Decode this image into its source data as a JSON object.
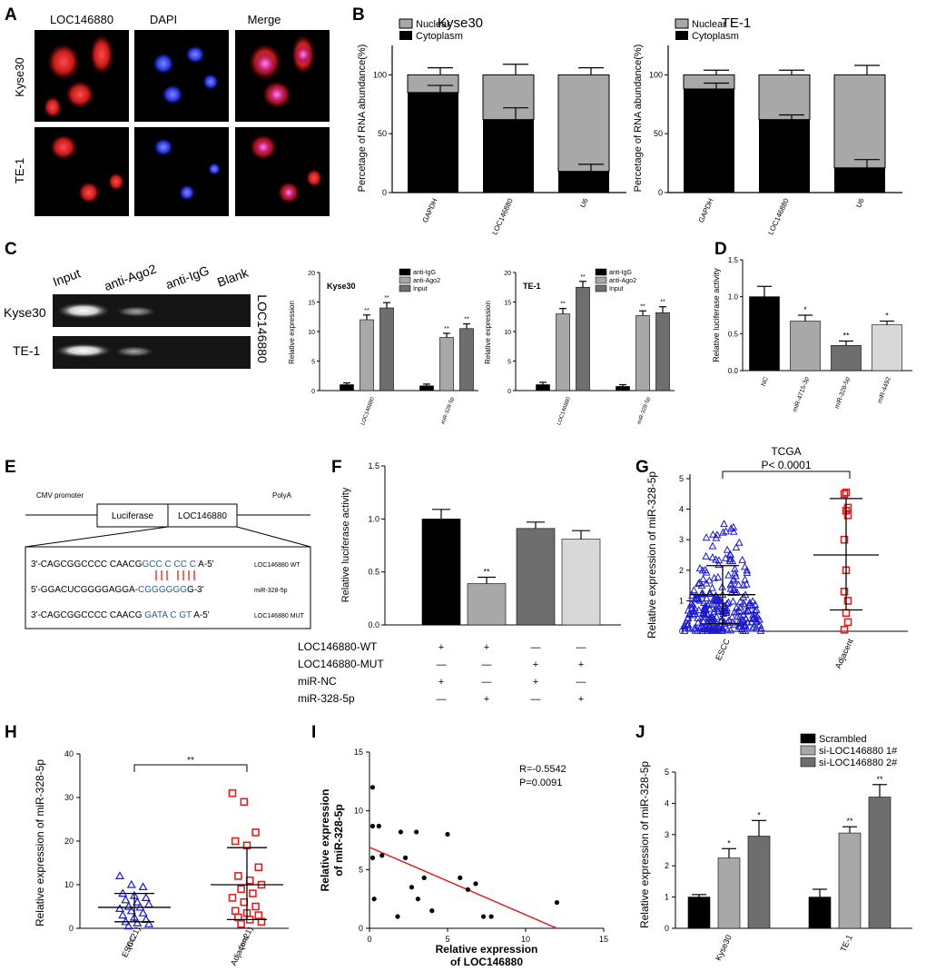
{
  "panels": {
    "A": {
      "label": "A",
      "columns": [
        "LOC146880",
        "DAPI",
        "Merge"
      ],
      "rows": [
        "Kyse30",
        "TE-1"
      ]
    },
    "B": {
      "label": "B",
      "ylabel": "Percetage of RNA abundance(%)",
      "legend": [
        "Nuclear",
        "Cytoplasm"
      ],
      "charts": [
        {
          "title": "Kyse30",
          "categories": [
            "GAPDH",
            "LOC146880",
            "U6"
          ],
          "cytoplasm": [
            85,
            62,
            18
          ],
          "cyto_err": [
            6,
            10,
            6
          ],
          "total_err": [
            6,
            9,
            6
          ]
        },
        {
          "title": "TE-1",
          "categories": [
            "GAPDH",
            "LOC146880",
            "U6"
          ],
          "cytoplasm": [
            88,
            62,
            21
          ],
          "cyto_err": [
            5,
            4,
            7
          ],
          "total_err": [
            4,
            4,
            8
          ]
        }
      ],
      "yticks": [
        "0",
        "50",
        "100"
      ]
    },
    "C": {
      "label": "C",
      "gel_lanes": [
        "Input",
        "anti-Ago2",
        "anti-IgG",
        "Blank"
      ],
      "gel_rows": [
        "Kyse30",
        "TE-1"
      ],
      "gel_side": "LOC146880",
      "ylabel": "Relative expression",
      "legend": [
        "anti-IgG",
        "anti-Ago2",
        "Input"
      ],
      "sig": "**",
      "charts": [
        {
          "title": "Kyse30",
          "categories": [
            "LOC146880",
            "miR-328-5p"
          ],
          "values": [
            [
              1,
              12,
              14
            ],
            [
              0.8,
              9,
              10.5
            ]
          ],
          "errors": [
            [
              0.3,
              0.8,
              0.9
            ],
            [
              0.3,
              0.7,
              0.8
            ]
          ]
        },
        {
          "title": "TE-1",
          "categories": [
            "LOC146880",
            "miR-328-5p"
          ],
          "values": [
            [
              1,
              13,
              17.5
            ],
            [
              0.7,
              12.7,
              13.2
            ]
          ],
          "errors": [
            [
              0.4,
              0.9,
              1
            ],
            [
              0.3,
              0.8,
              1
            ]
          ]
        }
      ],
      "yticks": [
        "0",
        "5",
        "10",
        "15",
        "20"
      ]
    },
    "D": {
      "label": "D",
      "ylabel": "Relative luciferase activity",
      "categories": [
        "NC",
        "miR-4715-3p",
        "miR-328-5p",
        "miR-4492"
      ],
      "values": [
        1.0,
        0.67,
        0.34,
        0.62
      ],
      "errors": [
        0.14,
        0.08,
        0.06,
        0.05
      ],
      "sig": [
        "",
        "*",
        "**",
        "*"
      ],
      "yticks": [
        "0.0",
        "0.5",
        "1.0",
        "1.5"
      ]
    },
    "E": {
      "label": "E",
      "cmv": "CMV promoter",
      "luc": "Luciferase",
      "loc": "LOC146880",
      "polya": "PolyA",
      "seq1a": "3'-CAGCGGCCCC CAACG",
      "seq1b": "GCC C CC C",
      "seq1c": "A-5'",
      "seq1n": "LOC146880 WT",
      "seq2a": "5'-GGACUCGGGGAGGA-",
      "seq2b": "CGGGGGG",
      "seq2c": "G-3'",
      "seq2n": "miR-328-5p",
      "seq3a": "3'-CAGCGGCCCC CAACG",
      "seq3b": "GATA C GT",
      "seq3c": "A-5'",
      "seq3n": "LOC146880 MUT"
    },
    "F": {
      "label": "F",
      "ylabel": "Relative luciferase activity",
      "values": [
        1.0,
        0.39,
        0.91,
        0.81
      ],
      "errors": [
        0.09,
        0.06,
        0.06,
        0.08
      ],
      "sig": [
        "",
        "**",
        "",
        ""
      ],
      "yticks": [
        "0.0",
        "0.5",
        "1.0",
        "1.5"
      ],
      "table_rows": [
        "LOC146880-WT",
        "LOC146880-MUT",
        "miR-NC",
        "miR-328-5p"
      ],
      "table": [
        [
          "+",
          "+",
          "—",
          "—"
        ],
        [
          "—",
          "—",
          "+",
          "+"
        ],
        [
          "+",
          "—",
          "+",
          "—"
        ],
        [
          "—",
          "+",
          "—",
          "+"
        ]
      ]
    },
    "G": {
      "label": "G",
      "title": "TCGA",
      "pvalue": "P< 0.0001",
      "ylabel": "Relative expression of miR-328-5p",
      "categories": [
        "ESCC",
        "Adjacent"
      ],
      "yticks": [
        "0",
        "1",
        "2",
        "3",
        "4",
        "5"
      ],
      "escc": {
        "mean": 1.2,
        "sd_low": 0.25,
        "sd_high": 2.15
      },
      "adj": {
        "mean": 2.5,
        "sd_low": 0.7,
        "sd_high": 4.35,
        "points": [
          4.55,
          4.5,
          4.05,
          3.95,
          3.8,
          3.0,
          2.0,
          1.3,
          1.0,
          0.6,
          0.3,
          0.05
        ]
      },
      "color_escc": "#1a1acc",
      "color_adj": "#e02020"
    },
    "H": {
      "label": "H",
      "ylabel": "Relative expression of miR-328-5p",
      "categories": [
        "ESCC (n=21)",
        "Adjacent (n=21)"
      ],
      "sig": "**",
      "yticks": [
        "0",
        "10",
        "20",
        "30",
        "40"
      ],
      "escc": {
        "mean": 4.8,
        "sd_low": 1.5,
        "sd_high": 8,
        "points": [
          12,
          10,
          9.5,
          8,
          7.5,
          7,
          6.5,
          6,
          5.5,
          5,
          4.8,
          4.5,
          4,
          3.5,
          3,
          2.5,
          2,
          1.5,
          1.2,
          1,
          0.5
        ]
      },
      "adj": {
        "mean": 10,
        "sd_low": 2,
        "sd_high": 18.5,
        "points": [
          31,
          29,
          22,
          20,
          19,
          14,
          12,
          11,
          10,
          9,
          8,
          7,
          6,
          5,
          4,
          3.5,
          3,
          2.5,
          2,
          1.5,
          1
        ]
      },
      "color_escc": "#1a1acc",
      "color_adj": "#e02020"
    },
    "I": {
      "label": "I",
      "r": "R=-0.5542",
      "p": "P=0.0091",
      "xlabel": "Relative expression of LOC146880",
      "ylabel": "Relative expression of miR-328-5p",
      "xticks": [
        "0",
        "5",
        "10",
        "15"
      ],
      "yticks": [
        "0",
        "5",
        "10",
        "15"
      ],
      "points": [
        [
          0.2,
          12
        ],
        [
          0.2,
          8.7
        ],
        [
          0.2,
          6
        ],
        [
          0.3,
          2.5
        ],
        [
          0.6,
          8.7
        ],
        [
          0.8,
          6.2
        ],
        [
          1.8,
          1
        ],
        [
          2,
          8.2
        ],
        [
          2.3,
          6
        ],
        [
          2.7,
          3.5
        ],
        [
          3,
          8.2
        ],
        [
          3.1,
          2.5
        ],
        [
          3.5,
          4.3
        ],
        [
          4,
          1.5
        ],
        [
          5,
          8
        ],
        [
          5.8,
          4.3
        ],
        [
          6.3,
          3.3
        ],
        [
          6.8,
          3.8
        ],
        [
          7.3,
          1
        ],
        [
          7.8,
          1
        ],
        [
          12,
          2.2
        ]
      ],
      "line": [
        [
          0,
          6.9
        ],
        [
          12,
          0
        ]
      ],
      "line_color": "#e02020"
    },
    "J": {
      "label": "J",
      "ylabel": "Relative expression of miR-328-5p",
      "legend": [
        "Scrambled",
        "si-LOC146880 1#",
        "si-LOC146880 2#"
      ],
      "categories": [
        "Kyse30",
        "TE-1"
      ],
      "values": [
        [
          1,
          2.25,
          2.95
        ],
        [
          1,
          3.05,
          4.2
        ]
      ],
      "errors": [
        [
          0.08,
          0.3,
          0.5
        ],
        [
          0.25,
          0.2,
          0.4
        ]
      ],
      "sig": [
        [
          "",
          "*",
          "*"
        ],
        [
          "",
          "**",
          "**"
        ]
      ],
      "yticks": [
        "0",
        "1",
        "2",
        "3",
        "4",
        "5"
      ]
    }
  }
}
